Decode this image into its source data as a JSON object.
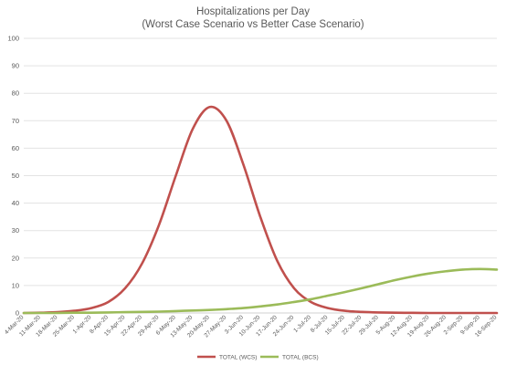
{
  "chart_data": {
    "type": "line",
    "title": "Hospitalizations per Day",
    "subtitle": "(Worst Case Scenario vs Better Case Scenario)",
    "xlabel": "",
    "ylabel": "",
    "ylim": [
      0,
      100
    ],
    "yticks": [
      0,
      10,
      20,
      30,
      40,
      50,
      60,
      70,
      80,
      90,
      100
    ],
    "grid": true,
    "legend_position": "bottom",
    "categories": [
      "4-Mar-20",
      "11-Mar-20",
      "18-Mar-20",
      "25-Mar-20",
      "1-Apr-20",
      "8-Apr-20",
      "15-Apr-20",
      "22-Apr-20",
      "29-Apr-20",
      "6-May-20",
      "13-May-20",
      "20-May-20",
      "27-May-20",
      "3-Jun-20",
      "10-Jun-20",
      "17-Jun-20",
      "24-Jun-20",
      "1-Jul-20",
      "8-Jul-20",
      "15-Jul-20",
      "22-Jul-20",
      "29-Jul-20",
      "5-Aug-20",
      "12-Aug-20",
      "19-Aug-20",
      "26-Aug-20",
      "2-Sep-20",
      "9-Sep-20",
      "16-Sep-20"
    ],
    "series": [
      {
        "name": "TOTAL (WCS)",
        "color": "#c0504d",
        "values": [
          0,
          0.1,
          0.3,
          0.8,
          1.8,
          4,
          9,
          18,
          32,
          50,
          67,
          75,
          70,
          54,
          35,
          19,
          9,
          4,
          1.8,
          0.8,
          0.4,
          0.2,
          0.1,
          0.05,
          0,
          0,
          0,
          0,
          0
        ]
      },
      {
        "name": "TOTAL (BCS)",
        "color": "#9bbb59",
        "values": [
          0,
          0,
          0,
          0.1,
          0.1,
          0.2,
          0.3,
          0.4,
          0.5,
          0.7,
          0.9,
          1.1,
          1.4,
          1.8,
          2.4,
          3.1,
          4,
          5,
          6.3,
          7.6,
          9,
          10.5,
          12,
          13.3,
          14.4,
          15.2,
          15.8,
          16,
          15.8
        ]
      }
    ]
  }
}
